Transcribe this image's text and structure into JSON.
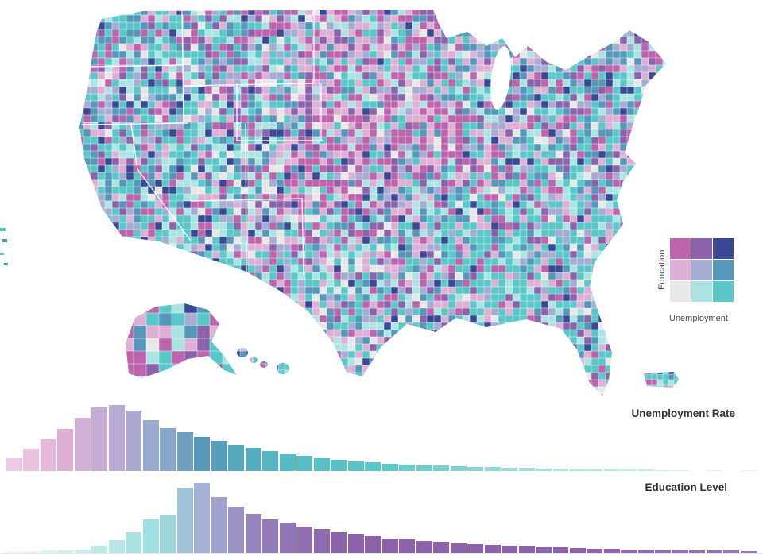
{
  "legend": {
    "y_label": "Education",
    "x_label": "Unemployment",
    "colors": [
      [
        "#be64ac",
        "#8c62aa",
        "#3b4994"
      ],
      [
        "#dfb0d6",
        "#a5add3",
        "#5698b9"
      ],
      [
        "#e8e8e8",
        "#ace4e4",
        "#5ac8c8"
      ]
    ]
  },
  "map": {
    "description_colors": {
      "high_edu_high_unemp": "#3b4994",
      "high_edu_low_unemp": "#be64ac",
      "low_edu_high_unemp": "#5ac8c8",
      "low_edu_low_unemp": "#e8e8e8"
    }
  },
  "chart_data": [
    {
      "type": "bar",
      "name": "unemployment-histogram",
      "title": "Unemployment Rate",
      "values": [
        21,
        34,
        48,
        64,
        81,
        97,
        100,
        91,
        77,
        65,
        59,
        52,
        46,
        40,
        35,
        30,
        26,
        23,
        20,
        17,
        15,
        13,
        11,
        10,
        9,
        8,
        7,
        6,
        6,
        5,
        5,
        4,
        4,
        3,
        3,
        3,
        2,
        2,
        1,
        1,
        0,
        1,
        0,
        1
      ],
      "ylim": [
        0,
        100
      ],
      "color_stops": [
        {
          "t": 0,
          "c": "#ecc9e4"
        },
        {
          "t": 0.07,
          "c": "#dfb0d6"
        },
        {
          "t": 0.14,
          "c": "#b9aad5"
        },
        {
          "t": 0.2,
          "c": "#8fa8cd"
        },
        {
          "t": 0.26,
          "c": "#5698b9"
        },
        {
          "t": 0.36,
          "c": "#57b8c2"
        },
        {
          "t": 0.5,
          "c": "#5ac8c8"
        },
        {
          "t": 0.7,
          "c": "#9fdede"
        },
        {
          "t": 1,
          "c": "#e2f5f5"
        }
      ]
    },
    {
      "type": "bar",
      "name": "education-histogram",
      "title": "Education Level",
      "values": [
        2,
        2,
        3,
        3,
        5,
        10,
        18,
        30,
        48,
        55,
        93,
        100,
        80,
        66,
        56,
        48,
        43,
        38,
        34,
        30,
        27,
        24,
        21,
        19,
        17,
        15,
        14,
        12,
        11,
        10,
        9,
        8,
        8,
        7,
        6,
        6,
        5,
        5,
        4,
        4,
        3,
        3,
        3,
        2
      ],
      "ylim": [
        0,
        100
      ],
      "color_stops": [
        {
          "t": 0,
          "c": "#eef9f9"
        },
        {
          "t": 0.1,
          "c": "#c6ebeb"
        },
        {
          "t": 0.2,
          "c": "#9adddd"
        },
        {
          "t": 0.26,
          "c": "#a5add3"
        },
        {
          "t": 0.33,
          "c": "#9480bd"
        },
        {
          "t": 0.45,
          "c": "#8c62aa"
        },
        {
          "t": 0.75,
          "c": "#8c62aa"
        },
        {
          "t": 1,
          "c": "#9a77b9"
        }
      ]
    }
  ]
}
